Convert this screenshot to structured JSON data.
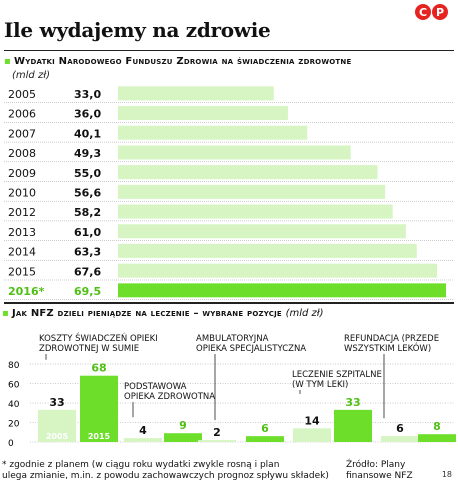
{
  "title": "Ile wydajemy na zdrowie",
  "logo": [
    "C",
    "P"
  ],
  "section1": {
    "title": "Wydatki Narodowego Funduszu Zdrowia na świadczenia zdrowotne",
    "unit": "(mld zł)"
  },
  "section2": {
    "title": "Jak NFZ dzieli pieniądze na leczenie – wybrane pozycje",
    "unit": "(mld zł)"
  },
  "colors": {
    "bar_light": "#d6f5c3",
    "bar_highlight": "#6ddf2b",
    "logo": "#e52421"
  },
  "chart_data": [
    {
      "type": "bar",
      "orientation": "horizontal",
      "title": "Wydatki Narodowego Funduszu Zdrowia na świadczenia zdrowotne",
      "unit": "(mld zł)",
      "categories": [
        "2005",
        "2006",
        "2007",
        "2008",
        "2009",
        "2010",
        "2012",
        "2013",
        "2014",
        "2015",
        "2016*"
      ],
      "values": [
        33.0,
        36.0,
        40.1,
        49.3,
        55.0,
        56.6,
        58.2,
        61.0,
        63.3,
        67.6,
        69.5
      ],
      "value_labels": [
        "33,0",
        "36,0",
        "40,1",
        "49,3",
        "55,0",
        "56,6",
        "58,2",
        "61,0",
        "63,3",
        "67,6",
        "69,5"
      ],
      "highlight_last": true,
      "xlim": [
        0,
        69.5
      ]
    },
    {
      "type": "bar",
      "title": "Jak NFZ dzieli pieniądze na leczenie – wybrane pozycje",
      "unit": "(mld zł)",
      "ylim": [
        0,
        80
      ],
      "yticks": [
        "0",
        "20",
        "40",
        "60",
        "80"
      ],
      "grid": true,
      "groups": [
        {
          "label": "KOSZTY ŚWIADCZEŃ OPIEKI ZDROWOTNEJ W SUMIE",
          "values": [
            33,
            68
          ],
          "value_labels": [
            "33",
            "68"
          ],
          "bar_labels": [
            "2005",
            "2015"
          ]
        },
        {
          "label": "PODSTAWOWA OPIEKA ZDROWOTNA",
          "values": [
            4,
            9
          ],
          "value_labels": [
            "4",
            "9"
          ]
        },
        {
          "label": "AMBULATORYJNA OPIEKA SPECJALISTYCZNA",
          "values": [
            2,
            6
          ],
          "value_labels": [
            "2",
            "6"
          ]
        },
        {
          "label": "LECZENIE SZPITALNE (W TYM LEKI)",
          "values": [
            14,
            33
          ],
          "value_labels": [
            "14",
            "33"
          ]
        },
        {
          "label": "REFUNDACJA (PRZEDE WSZYSTKIM LEKÓW)",
          "values": [
            6,
            8
          ],
          "value_labels": [
            "6",
            "8"
          ]
        }
      ]
    }
  ],
  "footnote": "* zgodnie z planem (w ciągu roku wydatki zwykle rosną i plan\nulega zmianie, m.in. z powodu zachowawczych prognoz spływu składek)",
  "source": "Źródło: Plany\nfinansowe NFZ",
  "page_number": "18"
}
